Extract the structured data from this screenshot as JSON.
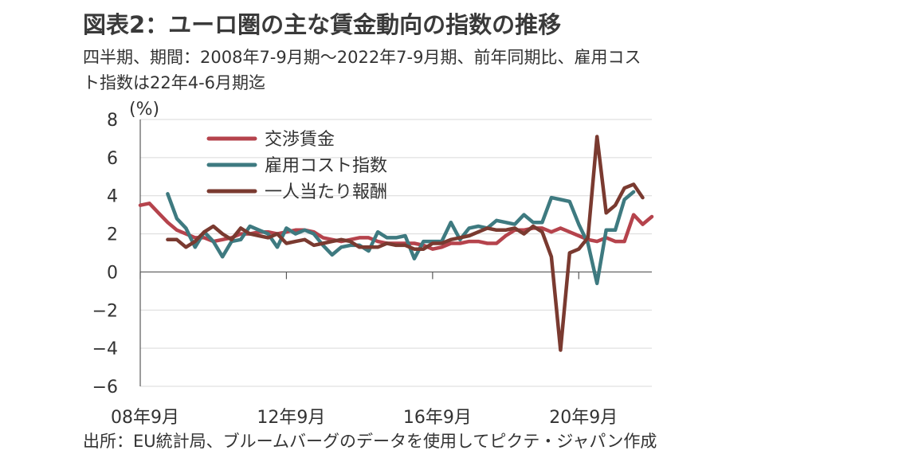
{
  "page": {
    "title": "図表2：ユーロ圏の主な賃金動向の指数の推移",
    "subtitle": "四半期、期間：2008年7-9月期～2022年7-9月期、前年同期比、雇用コスト指数は22年4-6月期迄",
    "source": "出所：EU統計局、ブルームバーグのデータを使用してピクテ・ジャパン作成"
  },
  "chart_data": {
    "type": "line",
    "unit_label": "(%)",
    "ylim": [
      -6,
      8
    ],
    "y_ticks": [
      8,
      6,
      4,
      2,
      0,
      -2,
      -4,
      -6
    ],
    "y_tick_labels": [
      "8",
      "6",
      "4",
      "2",
      "0",
      "−2",
      "−4",
      "−6"
    ],
    "x_tick_labels": [
      "08年9月",
      "12年9月",
      "16年9月",
      "20年9月"
    ],
    "x_tick_quarters": [
      0,
      16,
      32,
      48
    ],
    "n_quarters": 57,
    "grid": true,
    "legend_position": "top-left",
    "series": [
      {
        "name": "交渉賃金",
        "color": "#b5434c",
        "start_quarter": 0,
        "values": [
          3.5,
          3.6,
          3.1,
          2.6,
          2.2,
          2.0,
          1.8,
          1.8,
          1.6,
          1.7,
          1.8,
          2.0,
          2.0,
          2.1,
          2.1,
          2.0,
          2.1,
          2.2,
          2.2,
          2.1,
          1.8,
          1.7,
          1.6,
          1.7,
          1.8,
          1.8,
          1.6,
          1.5,
          1.5,
          1.5,
          1.5,
          1.4,
          1.2,
          1.3,
          1.5,
          1.5,
          1.6,
          1.6,
          1.5,
          1.5,
          1.9,
          2.2,
          2.2,
          2.3,
          2.3,
          2.1,
          2.3,
          2.1,
          1.9,
          1.7,
          1.6,
          1.8,
          1.6,
          1.6,
          3.0,
          2.5,
          2.9
        ]
      },
      {
        "name": "雇用コスト指数",
        "color": "#3e7a80",
        "start_quarter": 3,
        "values": [
          4.1,
          2.8,
          2.3,
          1.3,
          2.1,
          1.6,
          0.8,
          1.6,
          1.7,
          2.4,
          2.2,
          2.0,
          1.3,
          2.3,
          2.0,
          2.2,
          2.0,
          1.4,
          0.9,
          1.3,
          1.4,
          1.4,
          1.1,
          2.1,
          1.8,
          1.8,
          1.9,
          0.7,
          1.6,
          1.6,
          1.6,
          2.6,
          1.7,
          2.3,
          2.4,
          2.3,
          2.7,
          2.6,
          2.5,
          3.0,
          2.6,
          2.6,
          3.9,
          3.8,
          3.7,
          2.5,
          1.5,
          -0.6,
          2.2,
          2.2,
          3.8,
          4.2
        ]
      },
      {
        "name": "一人当たり報酬",
        "color": "#7a3a30",
        "start_quarter": 3,
        "values": [
          1.7,
          1.7,
          1.3,
          1.6,
          2.1,
          2.4,
          2.0,
          1.7,
          2.3,
          2.0,
          1.9,
          1.8,
          2.0,
          1.5,
          1.6,
          1.7,
          1.4,
          1.5,
          1.6,
          1.7,
          1.6,
          1.3,
          1.3,
          1.3,
          1.5,
          1.4,
          1.4,
          1.2,
          1.2,
          1.5,
          1.5,
          1.7,
          1.8,
          1.9,
          2.1,
          2.3,
          2.2,
          2.2,
          2.3,
          2.0,
          2.4,
          2.1,
          0.8,
          -4.1,
          1.0,
          1.2,
          1.8,
          7.1,
          3.1,
          3.5,
          4.4,
          4.6,
          3.9
        ]
      }
    ]
  }
}
